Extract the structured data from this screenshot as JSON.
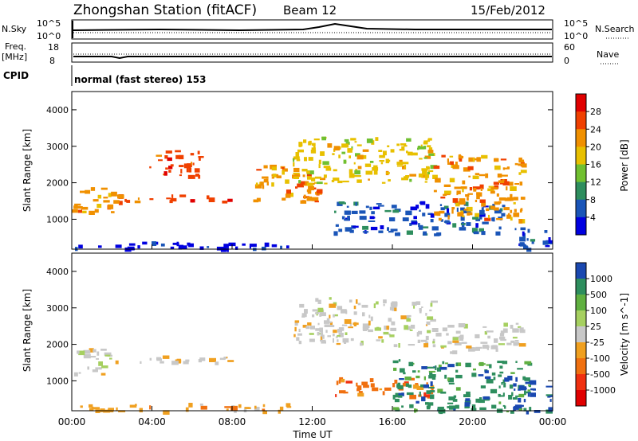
{
  "header": {
    "station": "Zhongshan Station (fitACF)",
    "beam": "Beam 12",
    "date": "15/Feb/2012"
  },
  "sky_panel": {
    "left_label": "N.Sky",
    "left_ticks": [
      "10^5",
      "10^0"
    ],
    "right_ticks": [
      "10^5",
      "10^0"
    ],
    "right_label": "N.Search"
  },
  "freq_panel": {
    "left_label_1": "Freq.",
    "left_label_2": "[MHz]",
    "left_ticks": [
      "18",
      "8"
    ],
    "right_ticks": [
      "60",
      "0"
    ],
    "right_label": "Nave"
  },
  "cpid": {
    "label": "CPID",
    "text": "normal (fast stereo) 153"
  },
  "chart_data": [
    {
      "type": "heatmap",
      "quantity": "Power",
      "ylabel": "Slant Range [km]",
      "ylim": [
        180,
        4500
      ],
      "yticks": [
        1000,
        2000,
        3000,
        4000
      ],
      "xlim": [
        "00:00",
        "24:00"
      ],
      "colorbar_label": "Power [dB]",
      "colorbar_ticks": [
        "28",
        "24",
        "20",
        "16",
        "12",
        "8",
        "4"
      ],
      "colorbar_colors": [
        "#e00000",
        "#f04000",
        "#f09000",
        "#e8c000",
        "#70c030",
        "#2e8e5e",
        "#1a55b8",
        "#0000e0"
      ],
      "echo_regions": [
        {
          "t0": 0.1,
          "t1": 11.0,
          "r0": 180,
          "r1": 400,
          "level": 7
        },
        {
          "t0": 0.0,
          "t1": 2.0,
          "r0": 1200,
          "r1": 1900,
          "level": 2
        },
        {
          "t0": 2.0,
          "t1": 8.0,
          "r0": 1500,
          "r1": 1700,
          "level": 1
        },
        {
          "t0": 3.8,
          "t1": 6.5,
          "r0": 2200,
          "r1": 2900,
          "level": 1
        },
        {
          "t0": 9.0,
          "t1": 12.5,
          "r0": 1500,
          "r1": 2500,
          "level": 2
        },
        {
          "t0": 11.0,
          "t1": 18.0,
          "r0": 2000,
          "r1": 3300,
          "level": 3
        },
        {
          "t0": 13.0,
          "t1": 21.5,
          "r0": 600,
          "r1": 1500,
          "level": 6
        },
        {
          "t0": 18.0,
          "t1": 22.5,
          "r0": 1000,
          "r1": 2800,
          "level": 2
        },
        {
          "t0": 22.0,
          "t1": 24.0,
          "r0": 180,
          "r1": 800,
          "level": 6
        }
      ]
    },
    {
      "type": "heatmap",
      "quantity": "Velocity",
      "ylabel": "Slant Range [km]",
      "ylim": [
        180,
        4500
      ],
      "yticks": [
        1000,
        2000,
        3000,
        4000
      ],
      "xlim": [
        "00:00",
        "24:00"
      ],
      "xticks": [
        "00:00",
        "04:00",
        "08:00",
        "12:00",
        "16:00",
        "20:00",
        "00:00"
      ],
      "xlabel": "Time UT",
      "colorbar_label": "Velocity [m s^-1]",
      "colorbar_ticks": [
        "1000",
        "500",
        "100",
        "25",
        "-25",
        "-100",
        "-500",
        "-1000"
      ],
      "colorbar_colors": [
        "#1a48b0",
        "#2e8e5e",
        "#60b040",
        "#a6d060",
        "#c8c8c8",
        "#f0a020",
        "#f07010",
        "#f03010",
        "#e00000"
      ],
      "echo_regions": [
        {
          "t0": 0.1,
          "t1": 11.0,
          "r0": 180,
          "r1": 400,
          "level": 5
        },
        {
          "t0": 0.0,
          "t1": 2.0,
          "r0": 1200,
          "r1": 1900,
          "level": 4
        },
        {
          "t0": 2.0,
          "t1": 8.0,
          "r0": 1500,
          "r1": 1700,
          "level": 4
        },
        {
          "t0": 11.0,
          "t1": 18.0,
          "r0": 2000,
          "r1": 3300,
          "level": 4
        },
        {
          "t0": 13.0,
          "t1": 18.0,
          "r0": 600,
          "r1": 1100,
          "level": 6
        },
        {
          "t0": 16.0,
          "t1": 23.0,
          "r0": 180,
          "r1": 1600,
          "level": 1
        },
        {
          "t0": 18.0,
          "t1": 22.5,
          "r0": 1800,
          "r1": 2600,
          "level": 4
        },
        {
          "t0": 22.0,
          "t1": 24.0,
          "r0": 180,
          "r1": 900,
          "level": 0
        }
      ]
    }
  ]
}
